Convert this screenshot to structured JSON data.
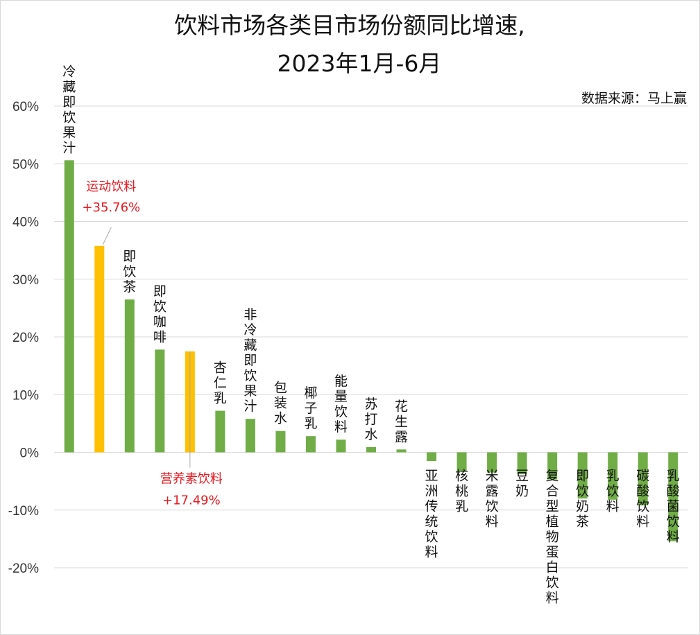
{
  "chart_data": {
    "type": "bar",
    "title_lines": [
      "饮料市场各类目市场份额同比增速,",
      "2023年1月-6月"
    ],
    "source": "数据来源：马上赢",
    "ylim": [
      -20,
      60
    ],
    "y_ticks": [
      "60%",
      "50%",
      "40%",
      "30%",
      "20%",
      "10%",
      "0%",
      "-10%",
      "-20%"
    ],
    "y_tick_values": [
      60,
      50,
      40,
      30,
      20,
      10,
      0,
      -10,
      -20
    ],
    "grid": true,
    "colors": {
      "default": "#70ad47",
      "highlight": "#ffc000",
      "annotation": "#e8181f"
    },
    "categories": [
      "冷藏即饮果汁",
      "运动饮料",
      "即饮茶",
      "即饮咖啡",
      "营养素饮料",
      "杏仁乳",
      "非冷藏即饮果汁",
      "包装水",
      "椰子乳",
      "能量饮料",
      "苏打水",
      "花生露",
      "亚洲传统饮料",
      "核桃乳",
      "米露饮料",
      "豆奶",
      "复合型植物蛋白饮料",
      "即饮奶茶",
      "乳饮料",
      "碳酸饮料",
      "乳酸菌饮料"
    ],
    "values": [
      50.6,
      35.76,
      26.5,
      17.8,
      17.49,
      7.2,
      5.8,
      3.7,
      2.8,
      2.2,
      0.9,
      0.5,
      -1.5,
      -3.3,
      -3.5,
      -3.8,
      -4.7,
      -8.0,
      -8.2,
      -9.2,
      -15.4
    ],
    "highlight": [
      false,
      true,
      false,
      false,
      true,
      false,
      false,
      false,
      false,
      false,
      false,
      false,
      false,
      false,
      false,
      false,
      false,
      false,
      false,
      false,
      false
    ],
    "annotations": [
      {
        "category": "运动饮料",
        "label": "运动饮料",
        "value_label": "+35.76%"
      },
      {
        "category": "营养素饮料",
        "label": "营养素饮料",
        "value_label": "+17.49%"
      }
    ]
  }
}
